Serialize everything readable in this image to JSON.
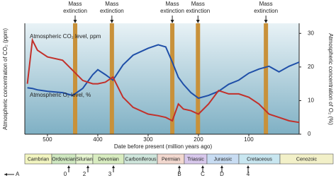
{
  "chart_data": {
    "type": "line",
    "x_label": "Date before present (million years ago)",
    "y_label": "Atmospheric concentration of CO₂ (ppm)",
    "y2_label": "Atmospheric concentration of O₂ (%)",
    "xlim": [
      545,
      0
    ],
    "xticks": [
      500,
      400,
      300,
      200,
      100
    ],
    "ylim": [
      0,
      8000
    ],
    "y2lim": [
      0,
      33
    ],
    "y2ticks": [
      0,
      10,
      20,
      30
    ],
    "x": [
      540,
      530,
      520,
      500,
      470,
      450,
      430,
      410,
      400,
      385,
      370,
      350,
      330,
      300,
      280,
      265,
      252,
      240,
      230,
      215,
      200,
      180,
      160,
      140,
      120,
      100,
      80,
      60,
      40,
      20,
      0
    ],
    "series": [
      {
        "name": "Atmospheric CO₂ level, ppm",
        "color": "#1f4fa8",
        "values": [
          3350,
          3300,
          3200,
          3100,
          3000,
          2800,
          3300,
          4300,
          4650,
          4300,
          3900,
          5000,
          5700,
          6200,
          6450,
          6300,
          5200,
          4100,
          3600,
          3000,
          2600,
          2800,
          3100,
          3600,
          3900,
          4400,
          4700,
          4900,
          4500,
          4900,
          5200
        ]
      },
      {
        "name": "Atmospheric O₂ level, %",
        "color": "#c2302a",
        "axis": "y2",
        "values": [
          15,
          28,
          25,
          23,
          22,
          19,
          16,
          15,
          15,
          15.5,
          17,
          11,
          8,
          6,
          5.5,
          5,
          4,
          9,
          7.5,
          7,
          6,
          9,
          13,
          12,
          12,
          11,
          9,
          6,
          5,
          4,
          3.5
        ]
      }
    ],
    "annotations": [
      {
        "label": "Mass extinction",
        "x": 445
      },
      {
        "label": "Mass extinction",
        "x": 372
      },
      {
        "label": "Mass extinction",
        "x": 252
      },
      {
        "label": "Mass extinction",
        "x": 201
      },
      {
        "label": "Mass extinction",
        "x": 66
      }
    ],
    "periods": [
      "Cambrian",
      "Ordovician",
      "Silurian",
      "Devonian",
      "Carboniferous",
      "Permian",
      "Triassic",
      "Jurassic",
      "Cretaceous",
      "Cenozoic"
    ],
    "markers": [
      "0",
      "2",
      "3",
      "B",
      "C",
      "D",
      "4"
    ],
    "start_marker": "A"
  }
}
